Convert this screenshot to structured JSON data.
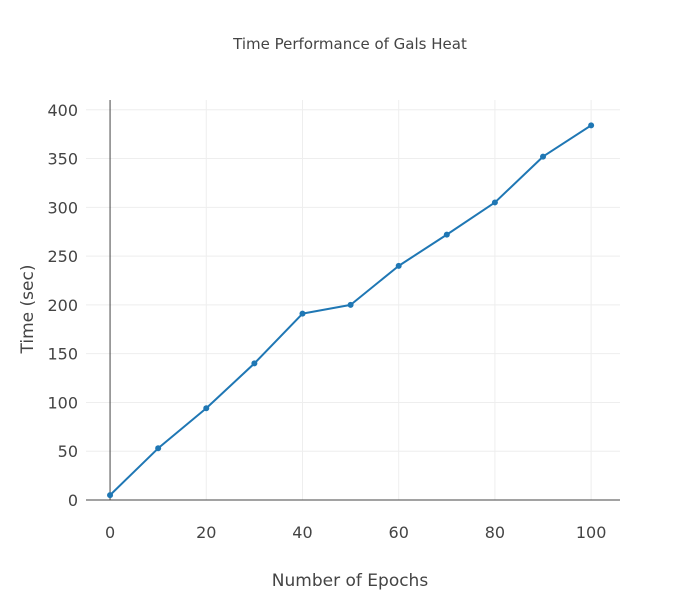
{
  "chart_data": {
    "type": "line",
    "title": "Time Performance of Gals Heat",
    "xlabel": "Number of Epochs",
    "ylabel": "Time (sec)",
    "xlim": [
      -5,
      106
    ],
    "ylim": [
      0,
      410
    ],
    "x_ticks": [
      0,
      20,
      40,
      60,
      80,
      100
    ],
    "y_ticks": [
      0,
      50,
      100,
      150,
      200,
      250,
      300,
      350,
      400
    ],
    "grid": true,
    "legend": "none",
    "line_color": "#1f77b4",
    "x": [
      0,
      10,
      20,
      30,
      40,
      50,
      60,
      70,
      80,
      90,
      100
    ],
    "series": [
      {
        "values": [
          5,
          53,
          94,
          140,
          191,
          200,
          240,
          272,
          305,
          352,
          384
        ]
      }
    ]
  }
}
